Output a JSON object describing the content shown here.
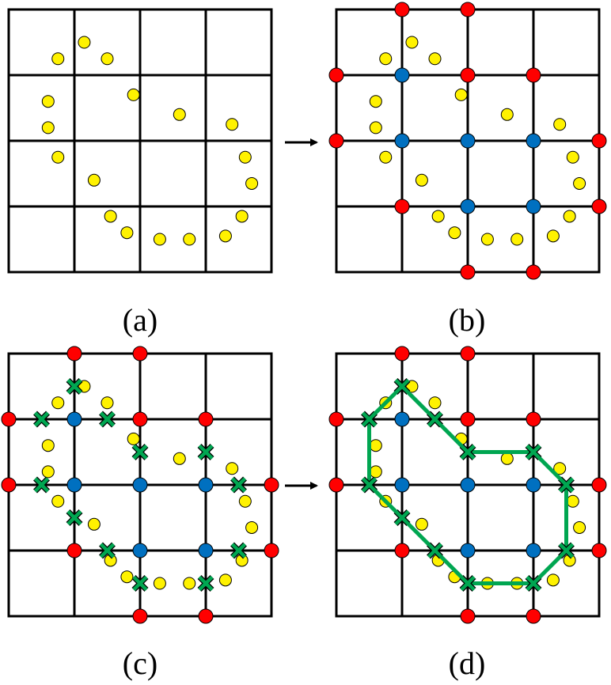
{
  "panels": [
    {
      "id": "a",
      "label": "(a)"
    },
    {
      "id": "b",
      "label": "(b)"
    },
    {
      "id": "c",
      "label": "(c)"
    },
    {
      "id": "d",
      "label": "(d)"
    }
  ],
  "colors": {
    "grid": "#000000",
    "sample_point": "#FFF200",
    "outside_vertex": "#FF0000",
    "inside_vertex": "#0070C0",
    "edge_cross": "#00A651",
    "contour": "#00A651"
  },
  "grid": {
    "rows": 4,
    "cols": 4
  },
  "sample_points": [
    [
      1.15,
      0.5
    ],
    [
      0.75,
      0.75
    ],
    [
      1.5,
      0.75
    ],
    [
      0.6,
      1.4
    ],
    [
      1.9,
      1.3
    ],
    [
      2.6,
      1.6
    ],
    [
      0.6,
      1.8
    ],
    [
      3.4,
      1.75
    ],
    [
      0.75,
      2.25
    ],
    [
      3.6,
      2.25
    ],
    [
      1.3,
      2.6
    ],
    [
      3.7,
      2.65
    ],
    [
      1.55,
      3.15
    ],
    [
      3.55,
      3.15
    ],
    [
      1.8,
      3.4
    ],
    [
      3.3,
      3.45
    ],
    [
      2.3,
      3.5
    ],
    [
      2.75,
      3.5
    ]
  ],
  "vertices": {
    "outside": [
      [
        1,
        0
      ],
      [
        2,
        0
      ],
      [
        0,
        1
      ],
      [
        2,
        1
      ],
      [
        3,
        1
      ],
      [
        0,
        2
      ],
      [
        4,
        2
      ],
      [
        1,
        3
      ],
      [
        4,
        3
      ],
      [
        2,
        4
      ],
      [
        3,
        4
      ]
    ],
    "inside": [
      [
        1,
        1
      ],
      [
        1,
        2
      ],
      [
        2,
        2
      ],
      [
        3,
        2
      ],
      [
        2,
        3
      ],
      [
        3,
        3
      ]
    ]
  },
  "edge_crossings": [
    [
      1,
      0.5
    ],
    [
      0.5,
      1
    ],
    [
      1.5,
      1
    ],
    [
      2,
      1.5
    ],
    [
      3,
      1.5
    ],
    [
      0.5,
      2
    ],
    [
      3.5,
      2
    ],
    [
      1,
      2.5
    ],
    [
      1.5,
      3
    ],
    [
      3.5,
      3
    ],
    [
      2,
      3.5
    ],
    [
      3,
      3.5
    ]
  ],
  "contour_order": [
    [
      1,
      0.5
    ],
    [
      1.5,
      1
    ],
    [
      2,
      1.5
    ],
    [
      3,
      1.5
    ],
    [
      3.5,
      2
    ],
    [
      3.5,
      3
    ],
    [
      3,
      3.5
    ],
    [
      2,
      3.5
    ],
    [
      1.5,
      3
    ],
    [
      1,
      2.5
    ],
    [
      0.5,
      2
    ],
    [
      0.5,
      1
    ]
  ]
}
